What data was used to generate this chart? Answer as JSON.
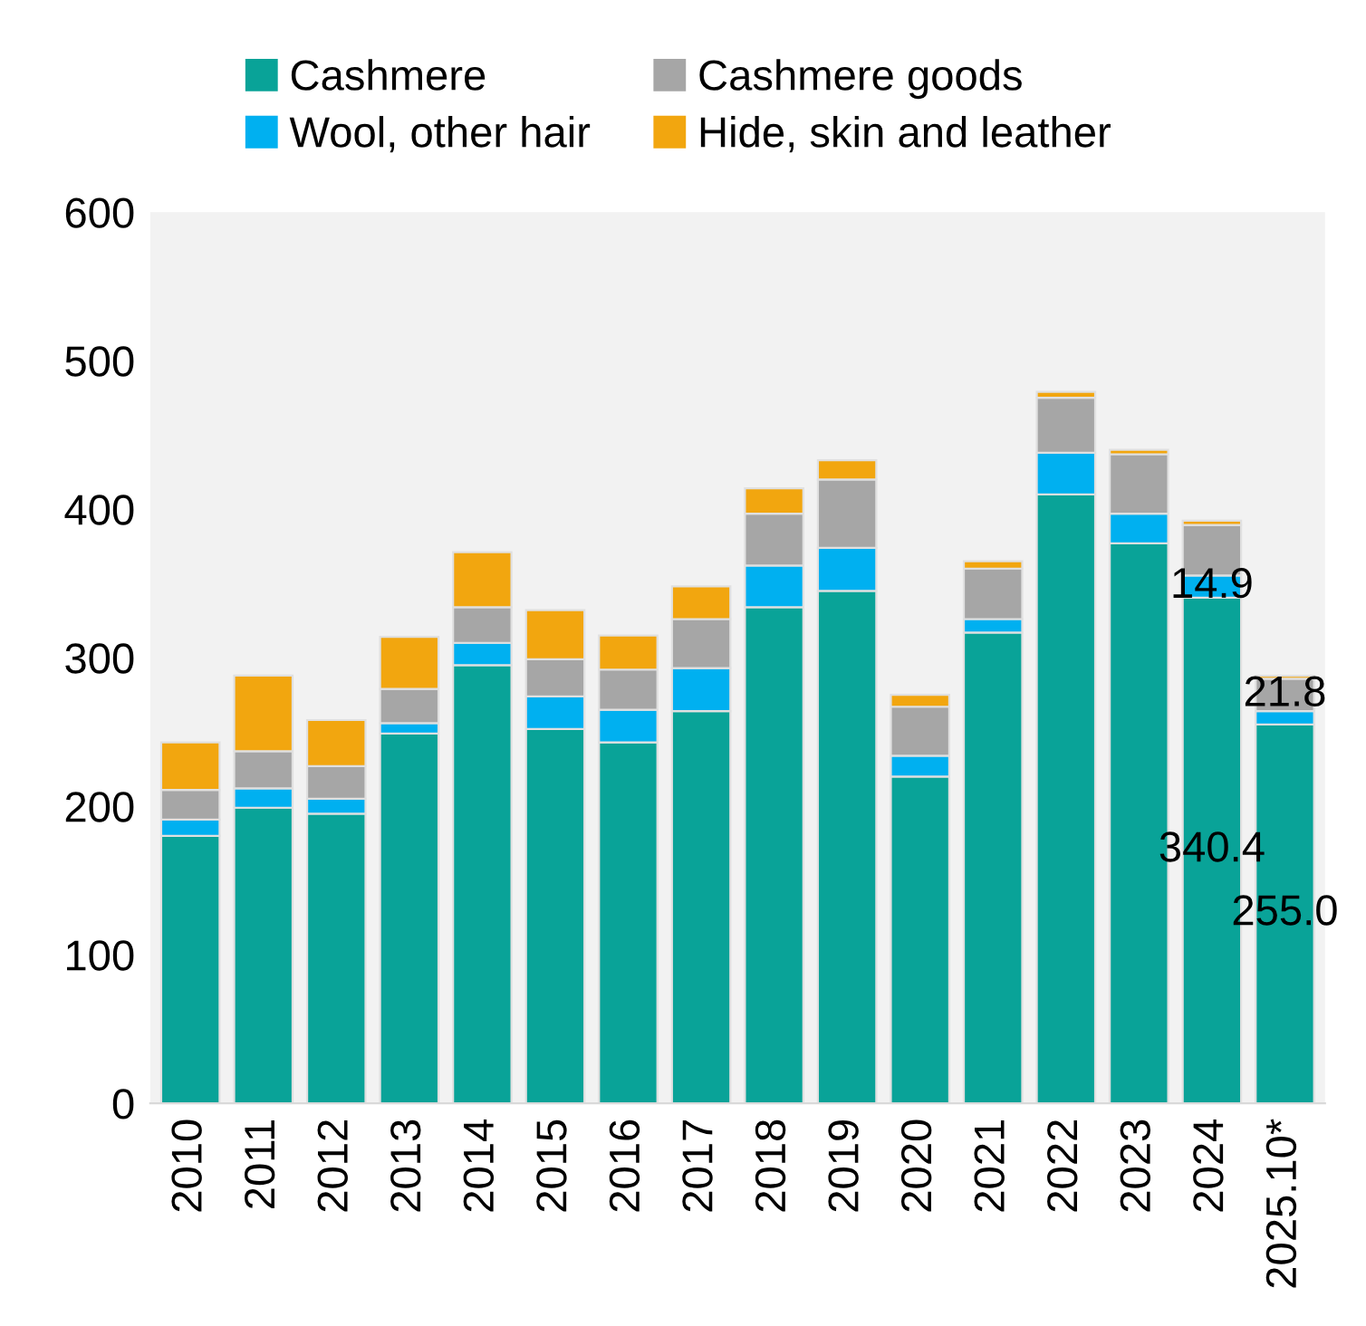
{
  "chart_data": {
    "type": "bar",
    "stacked": true,
    "categories": [
      "2010",
      "2011",
      "2012",
      "2013",
      "2014",
      "2015",
      "2016",
      "2017",
      "2018",
      "2019",
      "2020",
      "2021",
      "2022",
      "2023",
      "2024",
      "2025.10*"
    ],
    "series": [
      {
        "name": "Cashmere",
        "color": "#09a398",
        "values": [
          180,
          199,
          195,
          249,
          295,
          252,
          243,
          264,
          334,
          345,
          220,
          317,
          410,
          377,
          340.4,
          255.0
        ],
        "value_labels": [
          null,
          null,
          null,
          null,
          null,
          null,
          null,
          null,
          null,
          null,
          null,
          null,
          null,
          null,
          "340.4",
          "255.0"
        ]
      },
      {
        "name": "Wool, other hair",
        "color": "#00b0f0",
        "values": [
          11,
          13,
          10,
          7,
          15,
          22,
          22,
          29,
          28,
          29,
          14,
          9,
          28,
          20,
          14.9,
          9
        ],
        "value_labels": [
          null,
          null,
          null,
          null,
          null,
          null,
          null,
          null,
          null,
          null,
          null,
          null,
          null,
          null,
          "14.9",
          null
        ]
      },
      {
        "name": "Cashmere goods",
        "color": "#a6a6a6",
        "values": [
          20,
          25,
          22,
          23,
          24,
          25,
          27,
          33,
          35,
          46,
          33,
          34,
          37,
          40,
          34,
          21.8
        ],
        "value_labels": [
          null,
          null,
          null,
          null,
          null,
          null,
          null,
          null,
          null,
          null,
          null,
          null,
          null,
          null,
          null,
          "21.8"
        ]
      },
      {
        "name": "Hide, skin and leather",
        "color": "#f2a60f",
        "values": [
          32,
          51,
          31,
          35,
          37,
          33,
          23,
          22,
          17,
          13,
          8,
          5,
          4,
          3,
          3,
          2
        ]
      }
    ],
    "ylim": [
      0,
      600
    ],
    "yticks": [
      0,
      100,
      200,
      300,
      400,
      500,
      600
    ],
    "grid": false,
    "legend": "top"
  }
}
